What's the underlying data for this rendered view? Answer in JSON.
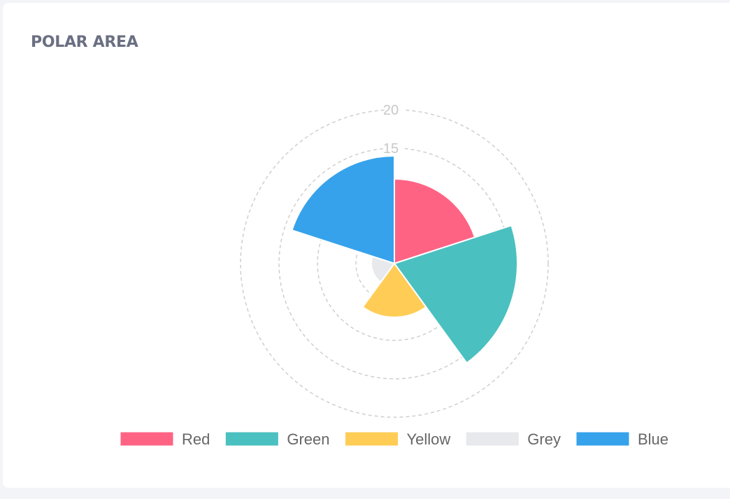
{
  "card": {
    "title": "POLAR AREA"
  },
  "chart_data": {
    "type": "polarArea",
    "title": "POLAR AREA",
    "categories": [
      "Red",
      "Green",
      "Yellow",
      "Grey",
      "Blue"
    ],
    "values": [
      11,
      16,
      7,
      3,
      14
    ],
    "colors": [
      "#ff6384",
      "#4bc0c0",
      "#ffcd56",
      "#e7e9ed",
      "#36a2eb"
    ],
    "r_axis": {
      "min": 0,
      "max": 20,
      "step": 5,
      "visible_tick_labels": [
        "15",
        "20"
      ],
      "grid_style": "dashed"
    },
    "legend": {
      "position": "bottom",
      "items": [
        "Red",
        "Green",
        "Yellow",
        "Grey",
        "Blue"
      ]
    }
  }
}
